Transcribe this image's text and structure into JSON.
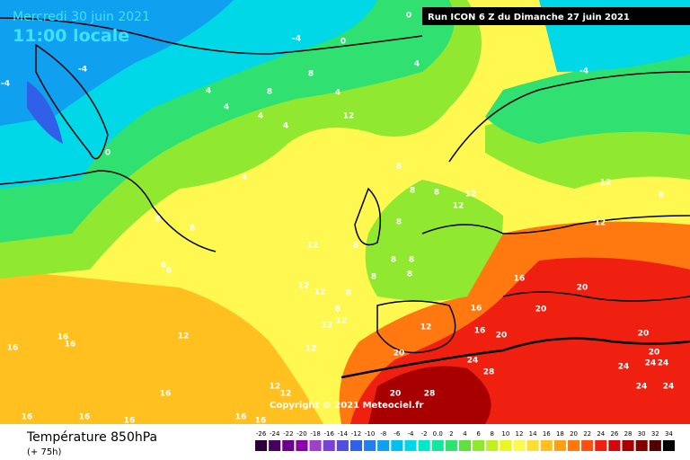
{
  "header": {
    "date": "Mercredi 30 juin 2021",
    "time": "11:00 locale",
    "run": "Run ICON 6 Z du Dimanche 27 juin 2021"
  },
  "copyright": "Copyright © 2021 Meteociel.fr",
  "footer": {
    "title": "Température 850hPa",
    "subtitle": "(+ 75h)"
  },
  "legend": [
    {
      "label": "-26",
      "color": "#2b0038"
    },
    {
      "label": "-24",
      "color": "#4a0060"
    },
    {
      "label": "-22",
      "color": "#6a0088"
    },
    {
      "label": "-20",
      "color": "#8a00a8"
    },
    {
      "label": "-18",
      "color": "#a040c8"
    },
    {
      "label": "-16",
      "color": "#7a40d8"
    },
    {
      "label": "-14",
      "color": "#5050e0"
    },
    {
      "label": "-12",
      "color": "#3060e8"
    },
    {
      "label": "-10",
      "color": "#2080f0"
    },
    {
      "label": "-8",
      "color": "#10a0f0"
    },
    {
      "label": "-6",
      "color": "#00c0f0"
    },
    {
      "label": "-4",
      "color": "#00d8e8"
    },
    {
      "label": "-2",
      "color": "#00e8c8"
    },
    {
      "label": "0.0",
      "color": "#10e8a0"
    },
    {
      "label": "2",
      "color": "#30e070"
    },
    {
      "label": "4",
      "color": "#60e040"
    },
    {
      "label": "6",
      "color": "#90e830"
    },
    {
      "label": "8",
      "color": "#c0f020"
    },
    {
      "label": "10",
      "color": "#e8f820"
    },
    {
      "label": "12",
      "color": "#fff850"
    },
    {
      "label": "14",
      "color": "#ffe030"
    },
    {
      "label": "16",
      "color": "#ffc020"
    },
    {
      "label": "18",
      "color": "#ffa010"
    },
    {
      "label": "20",
      "color": "#ff7810"
    },
    {
      "label": "22",
      "color": "#ff5010"
    },
    {
      "label": "24",
      "color": "#f02010"
    },
    {
      "label": "26",
      "color": "#d00808"
    },
    {
      "label": "28",
      "color": "#a80000"
    },
    {
      "label": "30",
      "color": "#800000"
    },
    {
      "label": "32",
      "color": "#500000"
    },
    {
      "label": "34",
      "color": "#000000"
    }
  ],
  "map": {
    "contour_labels": [
      0,
      -4,
      0,
      -4,
      -4,
      4,
      -4,
      8,
      4,
      8,
      4,
      4,
      4,
      12,
      4,
      0,
      8,
      4,
      12,
      8,
      8,
      8,
      12,
      12,
      8,
      8,
      8,
      12,
      12,
      8,
      8,
      8,
      8,
      8,
      8,
      8,
      16,
      12,
      12,
      8,
      20,
      8,
      16,
      20,
      12,
      12,
      12,
      16,
      12,
      20,
      16,
      16,
      16,
      20,
      12,
      20,
      24,
      20,
      24,
      24,
      24,
      28,
      12,
      12,
      16,
      24,
      24,
      20,
      28,
      16,
      16,
      16,
      16,
      16
    ]
  }
}
